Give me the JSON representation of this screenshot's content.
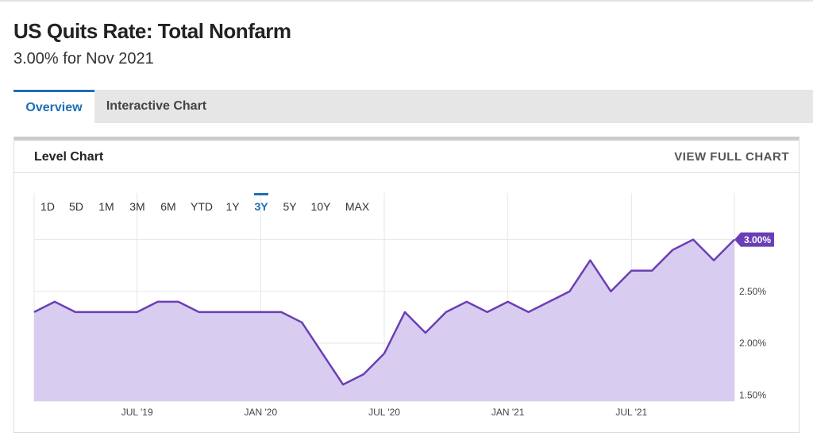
{
  "header": {
    "title": "US Quits Rate: Total Nonfarm",
    "subtitle": "3.00% for Nov 2021"
  },
  "tabs": [
    {
      "label": "Overview",
      "active": true
    },
    {
      "label": "Interactive Chart",
      "active": false
    }
  ],
  "panel": {
    "title": "Level Chart",
    "action": "VIEW FULL CHART"
  },
  "ranges": [
    {
      "label": "1D",
      "active": false
    },
    {
      "label": "5D",
      "active": false
    },
    {
      "label": "1M",
      "active": false
    },
    {
      "label": "3M",
      "active": false
    },
    {
      "label": "6M",
      "active": false
    },
    {
      "label": "YTD",
      "active": false
    },
    {
      "label": "1Y",
      "active": false
    },
    {
      "label": "3Y",
      "active": true
    },
    {
      "label": "5Y",
      "active": false
    },
    {
      "label": "10Y",
      "active": false
    },
    {
      "label": "MAX",
      "active": false
    }
  ],
  "chart_data": {
    "type": "area",
    "categories": [
      null,
      null,
      null,
      null,
      null,
      "JUL '19",
      null,
      null,
      null,
      null,
      null,
      "JAN '20",
      null,
      null,
      null,
      null,
      null,
      "JUL '20",
      null,
      null,
      null,
      null,
      null,
      "JAN '21",
      null,
      null,
      null,
      null,
      null,
      "JUL '21",
      null,
      null,
      null,
      null,
      null
    ],
    "values": [
      2.3,
      2.4,
      2.3,
      2.3,
      2.3,
      2.3,
      2.4,
      2.4,
      2.3,
      2.3,
      2.3,
      2.3,
      2.3,
      2.2,
      1.9,
      1.6,
      1.7,
      1.9,
      2.3,
      2.1,
      2.3,
      2.4,
      2.3,
      2.4,
      2.3,
      2.4,
      2.5,
      2.8,
      2.5,
      2.7,
      2.7,
      2.9,
      3.0,
      2.8,
      3.0
    ],
    "current_label": "3.00%",
    "color": "#6a3fb5",
    "fill": "#d8cdf0",
    "ylim": [
      1.44,
      3.45
    ],
    "yticks": [
      {
        "value": 1.5,
        "label": "1.50%"
      },
      {
        "value": 2.0,
        "label": "2.00%"
      },
      {
        "value": 2.5,
        "label": "2.50%"
      },
      {
        "value": 3.0,
        "label": "3.00%"
      }
    ],
    "grid": true
  }
}
